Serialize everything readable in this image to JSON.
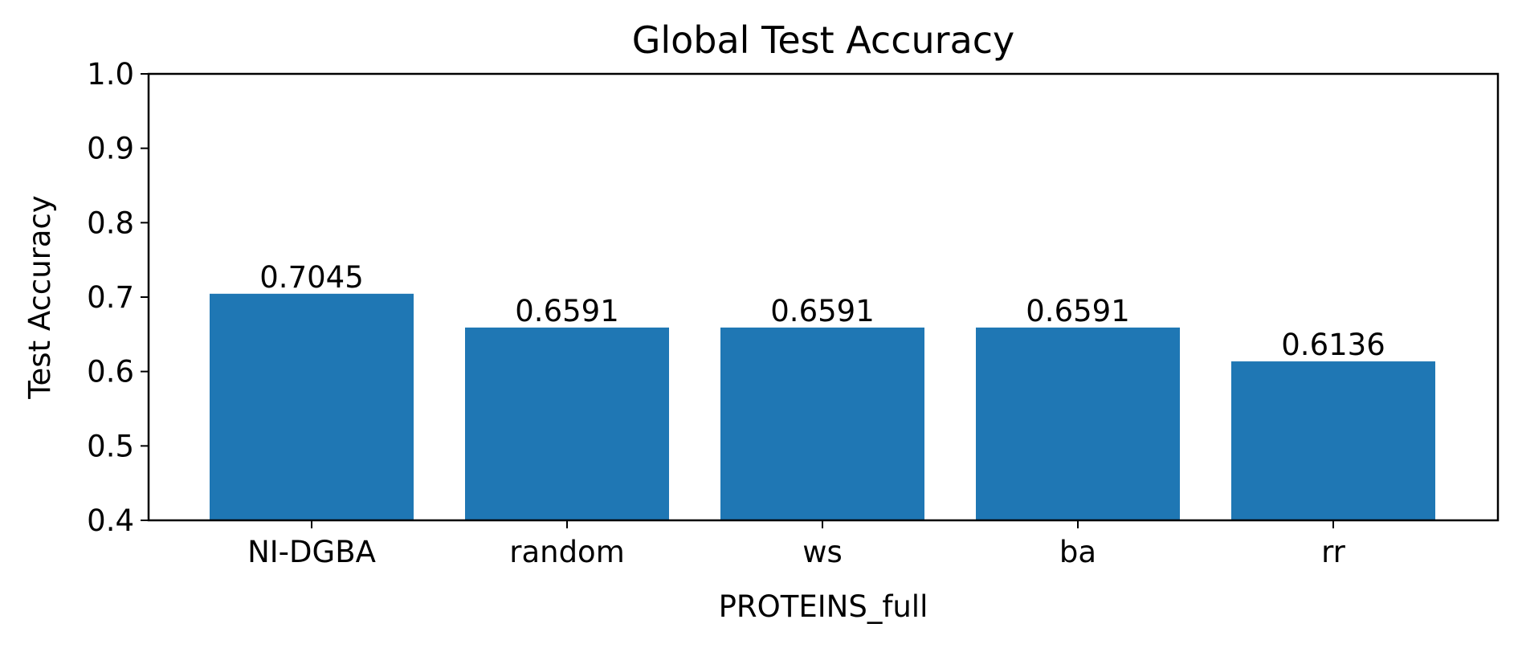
{
  "chart_data": {
    "type": "bar",
    "title": "Global Test Accuracy",
    "xlabel": "PROTEINS_full",
    "ylabel": "Test Accuracy",
    "categories": [
      "NI-DGBA",
      "random",
      "ws",
      "ba",
      "rr"
    ],
    "values": [
      0.7045,
      0.6591,
      0.6591,
      0.6591,
      0.6136
    ],
    "value_labels": [
      "0.7045",
      "0.6591",
      "0.6591",
      "0.6591",
      "0.6136"
    ],
    "ylim": [
      0.4,
      1.0
    ],
    "yticks": [
      0.4,
      0.5,
      0.6,
      0.7,
      0.8,
      0.9,
      1.0
    ],
    "ytick_labels": [
      "0.4",
      "0.5",
      "0.6",
      "0.7",
      "0.8",
      "0.9",
      "1.0"
    ],
    "grid": false,
    "legend": "none",
    "bar_color": "#1f77b4"
  }
}
